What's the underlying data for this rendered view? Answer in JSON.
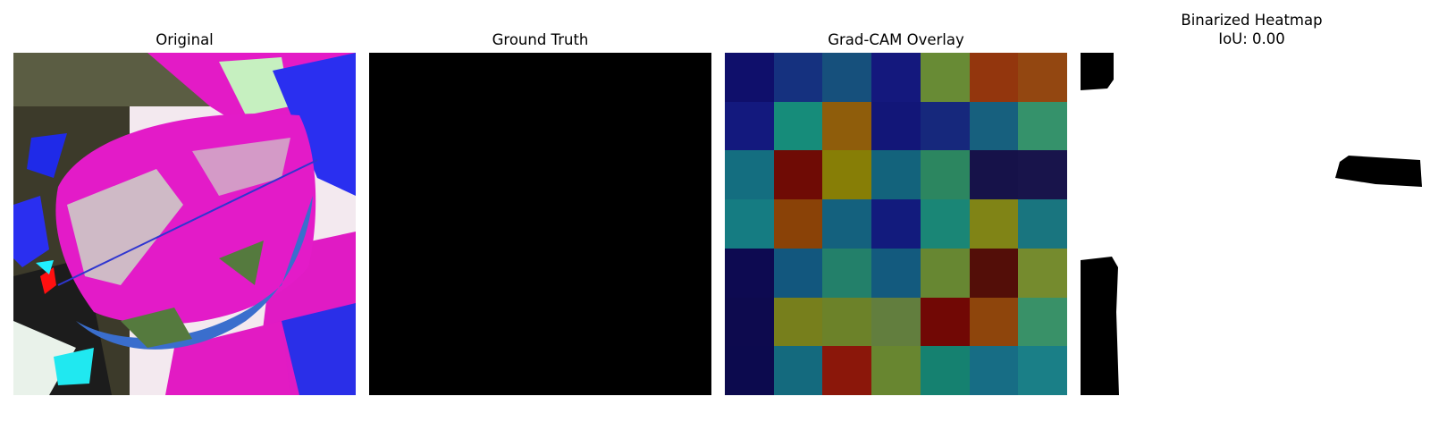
{
  "panels": {
    "original": {
      "title": "Original"
    },
    "ground_truth": {
      "title": "Ground Truth"
    },
    "gradcam": {
      "title": "Grad-CAM Overlay",
      "grid_colors": [
        [
          "#0f0f6b",
          "#15317f",
          "#16507c",
          "#14187d",
          "#688b35",
          "#93360d",
          "#934711"
        ],
        [
          "#13197e",
          "#168c7a",
          "#8f5d0b",
          "#121678",
          "#16287c",
          "#17607e",
          "#35926b"
        ],
        [
          "#146e80",
          "#6f0b05",
          "#877e06",
          "#13637c",
          "#2c8660",
          "#161249",
          "#18144b"
        ],
        [
          "#157c82",
          "#8a4207",
          "#14617e",
          "#121b7d",
          "#1a8676",
          "#808416",
          "#19757f"
        ],
        [
          "#0d0a51",
          "#12577e",
          "#23806a",
          "#135a7e",
          "#678732",
          "#530e08",
          "#758b2e"
        ],
        [
          "#0d0a4e",
          "#777f1c",
          "#6c8229",
          "#627e3e",
          "#710805",
          "#8e450c",
          "#399168"
        ],
        [
          "#0c0a4e",
          "#146a7e",
          "#8b170a",
          "#688630",
          "#158170",
          "#176d85",
          "#1a7f87"
        ]
      ]
    },
    "binarized": {
      "title": "Binarized Heatmap\nIoU: 0.00"
    }
  }
}
